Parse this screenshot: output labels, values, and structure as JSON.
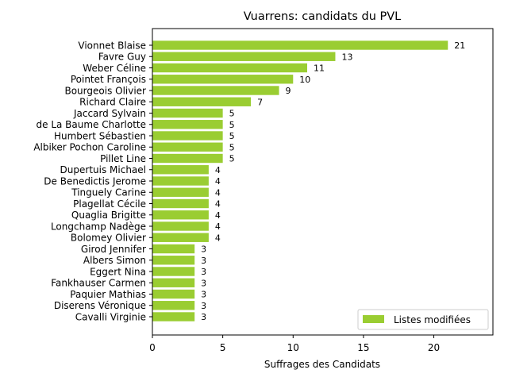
{
  "chart_data": {
    "type": "bar",
    "orientation": "horizontal",
    "title": "Vuarrens: candidats du PVL",
    "xlabel": "Suffrages des Candidats",
    "ylabel": "",
    "xlim": [
      0,
      24.2
    ],
    "xticks": [
      0,
      5,
      10,
      15,
      20
    ],
    "grid": false,
    "legend_position": "lower-right",
    "bar_color": "#9acd32",
    "categories": [
      "Vionnet Blaise",
      "Favre Guy",
      "Weber Céline",
      "Pointet François",
      "Bourgeois Olivier",
      "Richard Claire",
      "Jaccard Sylvain",
      "de La Baume Charlotte",
      "Humbert Sébastien",
      "Albiker Pochon Caroline",
      "Pillet Line",
      "Dupertuis Michael",
      "De Benedictis Jerome",
      "Tinguely Carine",
      "Plagellat Cécile",
      "Quaglia Brigitte",
      "Longchamp Nadège",
      "Bolomey Olivier",
      "Girod Jennifer",
      "Albers Simon",
      "Eggert Nina",
      "Fankhauser Carmen",
      "Paquier Mathias",
      "Diserens Véronique",
      "Cavalli Virginie"
    ],
    "series": [
      {
        "name": "Listes modifiées",
        "values": [
          21,
          13,
          11,
          10,
          9,
          7,
          5,
          5,
          5,
          5,
          5,
          4,
          4,
          4,
          4,
          4,
          4,
          4,
          3,
          3,
          3,
          3,
          3,
          3,
          3
        ]
      }
    ]
  }
}
